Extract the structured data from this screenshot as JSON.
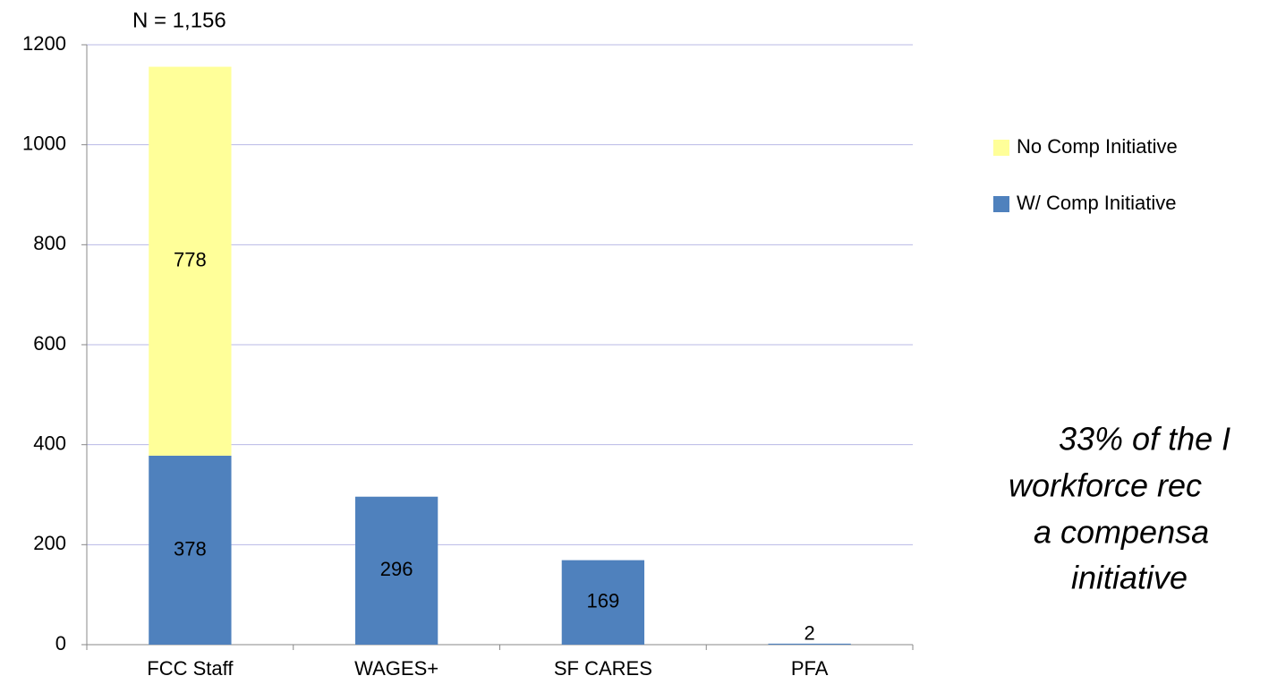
{
  "chart_data": {
    "type": "stacked_bar",
    "annotation": "N = 1,156",
    "categories": [
      "FCC Staff",
      "WAGES+",
      "SF CARES",
      "PFA"
    ],
    "series": [
      {
        "name": "W/ Comp Initiative",
        "color": "#4f81bd",
        "values": [
          378,
          296,
          169,
          2
        ]
      },
      {
        "name": "No Comp Initiative",
        "color": "#ffff99",
        "values": [
          778,
          null,
          null,
          null
        ]
      }
    ],
    "ylim": [
      0,
      1200
    ],
    "yticks": [
      0,
      200,
      400,
      600,
      800,
      1000,
      1200
    ],
    "grid": true,
    "note": [
      "33% of the I",
      "workforce rec",
      "a compensa",
      "initiative"
    ]
  }
}
